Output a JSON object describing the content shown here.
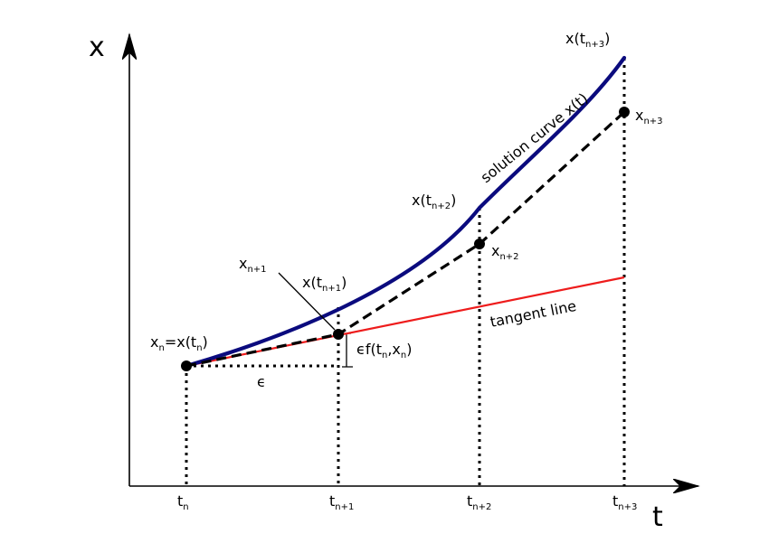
{
  "axes": {
    "x_axis_symbol": "t",
    "y_axis_symbol": "x"
  },
  "ticks": [
    {
      "base": "t",
      "sub": "n"
    },
    {
      "base": "t",
      "sub": "n+1"
    },
    {
      "base": "t",
      "sub": "n+2"
    },
    {
      "base": "t",
      "sub": "n+3"
    }
  ],
  "labels": {
    "xn_base": "x",
    "xn_sub": "n",
    "xn_eq": "=x(t",
    "xn_eq_sub": "n",
    "xn_close": ")",
    "xn1_base": "x",
    "xn1_sub": "n+1",
    "xn2_base": "x",
    "xn2_sub": "n+2",
    "xn3_base": "x",
    "xn3_sub": "n+3",
    "xt1_pre": "x(t",
    "xt1_sub": "n+1",
    "xt1_post": ")",
    "xt2_pre": "x(t",
    "xt2_sub": "n+2",
    "xt2_post": ")",
    "xt3_pre": "x(t",
    "xt3_sub": "n+3",
    "xt3_post": ")",
    "epsilon": "ϵ",
    "step_pre": "ϵf(t",
    "step_sub1": "n",
    "step_mid": ",x",
    "step_sub2": "n",
    "step_post": ")",
    "solution_curve": "solution curve x(t)",
    "tangent_line": "tangent line"
  },
  "colors": {
    "solution_curve": "#0b0b7e",
    "tangent_line": "#ee1c1c",
    "euler_path": "#000000"
  }
}
